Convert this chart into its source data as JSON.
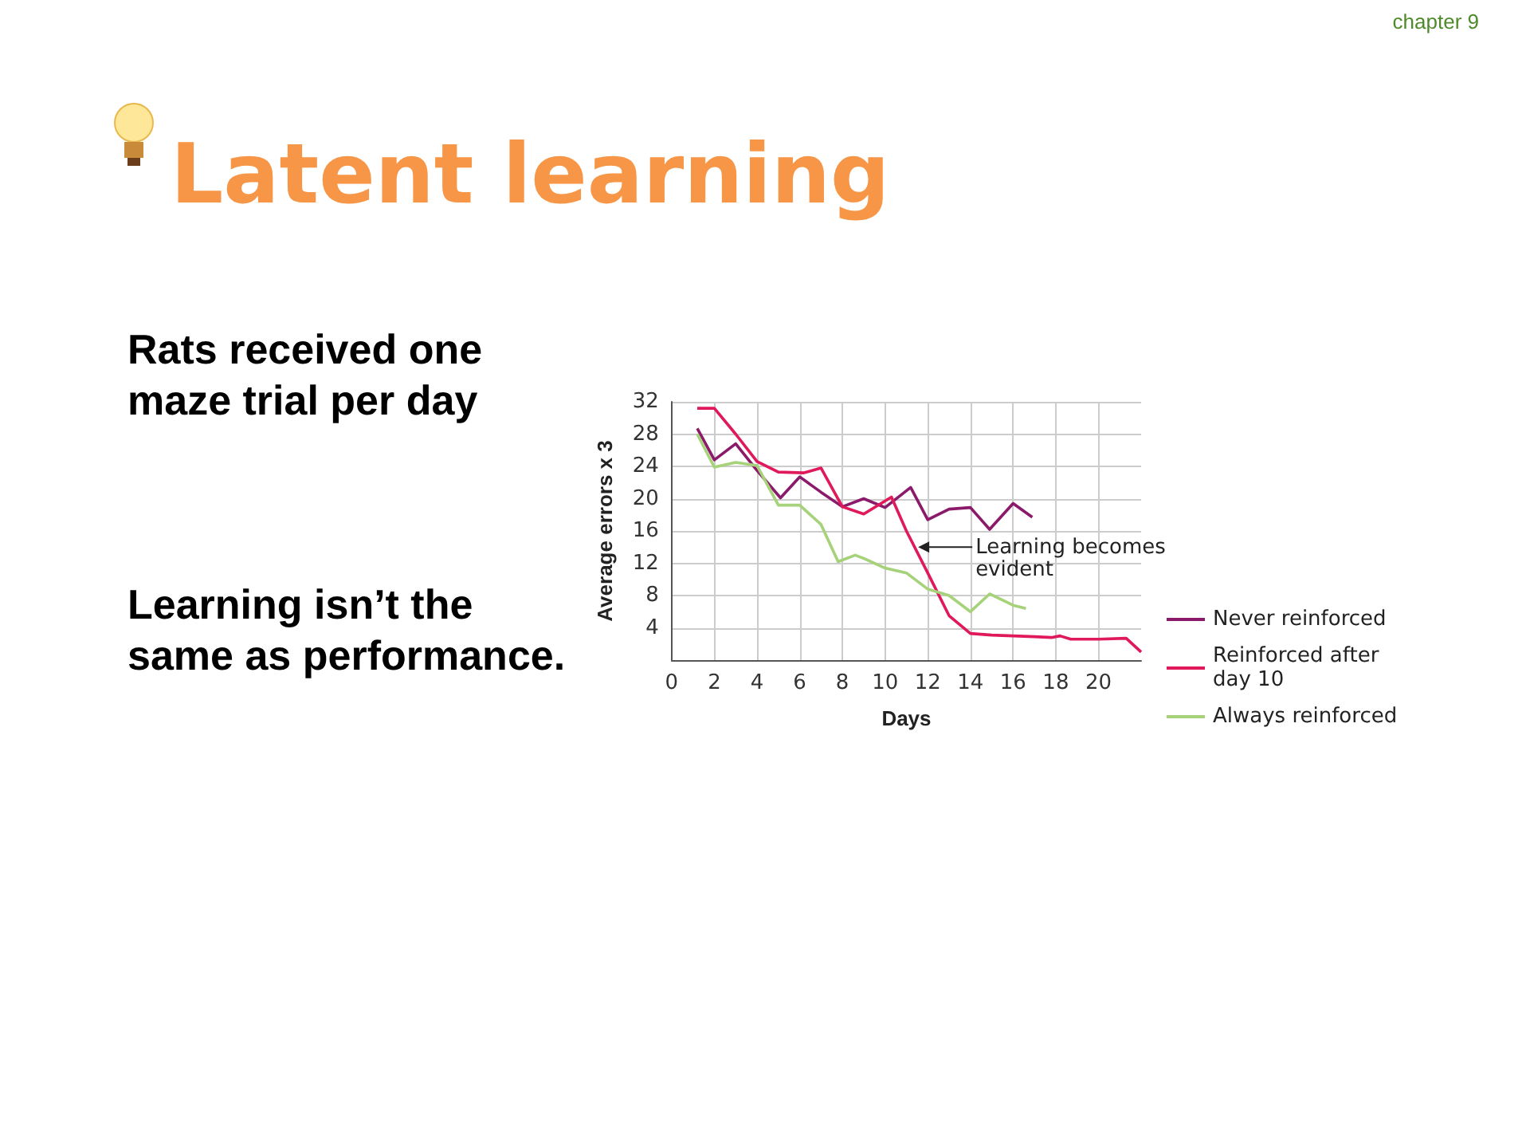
{
  "chart_data": {
    "type": "line",
    "title": "Latent learning",
    "xlabel": "Days",
    "ylabel": "Average errors x 3",
    "xlim": [
      0,
      22
    ],
    "xticks": [
      0,
      2,
      4,
      6,
      8,
      10,
      12,
      14,
      16,
      18,
      20
    ],
    "ylim": [
      0,
      32
    ],
    "yticks": [
      4,
      8,
      12,
      16,
      20,
      24,
      28,
      32
    ],
    "grid": true,
    "legend": "right",
    "marker": "none",
    "line_style": "solid",
    "annotations": [
      "chapter 9",
      "Rats received one maze trial per day",
      "Learning isn’t the same as performance.",
      {
        "text": "Learning becomes evident",
        "x": 11.4,
        "y": 14
      }
    ],
    "series": [
      {
        "name": "Never reinforced",
        "color": "#8b1a6b",
        "x": [
          1.2,
          2,
          3,
          4,
          5.1,
          6,
          7,
          8,
          9,
          10,
          11.2,
          12,
          13,
          14,
          14.9,
          16,
          16.9
        ],
        "values": [
          28.7,
          24.8,
          26.8,
          23.5,
          20.1,
          22.7,
          20.8,
          19.0,
          20.0,
          18.9,
          21.4,
          17.4,
          18.7,
          18.9,
          16.2,
          19.4,
          17.7
        ]
      },
      {
        "name": "Reinforced after day 10",
        "color": "#e0195a",
        "x": [
          1.2,
          2,
          3,
          4,
          5,
          6.2,
          7,
          8,
          9,
          10.3,
          11,
          12,
          13,
          14,
          15,
          16,
          17,
          17.8,
          18.2,
          18.7,
          20,
          21.3,
          22
        ],
        "values": [
          31.2,
          31.2,
          28,
          24.6,
          23.3,
          23.2,
          23.8,
          19.0,
          18.1,
          20.2,
          16,
          10.8,
          5.5,
          3.3,
          3.1,
          3.0,
          2.9,
          2.8,
          3.0,
          2.6,
          2.6,
          2.7,
          1.0
        ]
      },
      {
        "name": "Always reinforced",
        "color": "#a6d27a",
        "x": [
          1.2,
          2,
          3,
          4,
          5,
          6,
          7,
          7.8,
          8.6,
          9,
          10,
          11,
          12,
          13,
          14,
          14.9,
          16,
          16.6
        ],
        "values": [
          28.0,
          23.9,
          24.5,
          24.1,
          19.2,
          19.2,
          16.8,
          12.2,
          13.0,
          12.6,
          11.4,
          10.8,
          8.8,
          8.0,
          6.0,
          8.2,
          6.8,
          6.4
        ]
      }
    ]
  }
}
